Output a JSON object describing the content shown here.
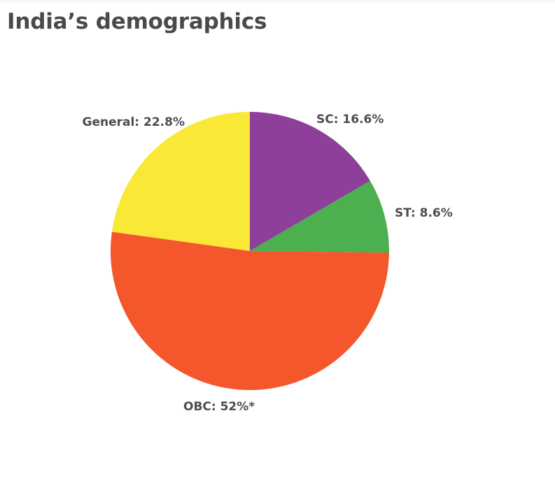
{
  "chart_data": {
    "type": "pie",
    "title": "India’s demographics",
    "slices": [
      {
        "name": "SC",
        "label": "SC: 16.6%",
        "value": 16.6,
        "color": "#8e3f9a"
      },
      {
        "name": "ST",
        "label": "ST: 8.6%",
        "value": 8.6,
        "color": "#4caf50"
      },
      {
        "name": "OBC",
        "label": "OBC: 52%*",
        "value": 52,
        "color": "#f4572b"
      },
      {
        "name": "General",
        "label": "General: 22.8%",
        "value": 22.8,
        "color": "#f9e936"
      }
    ]
  }
}
